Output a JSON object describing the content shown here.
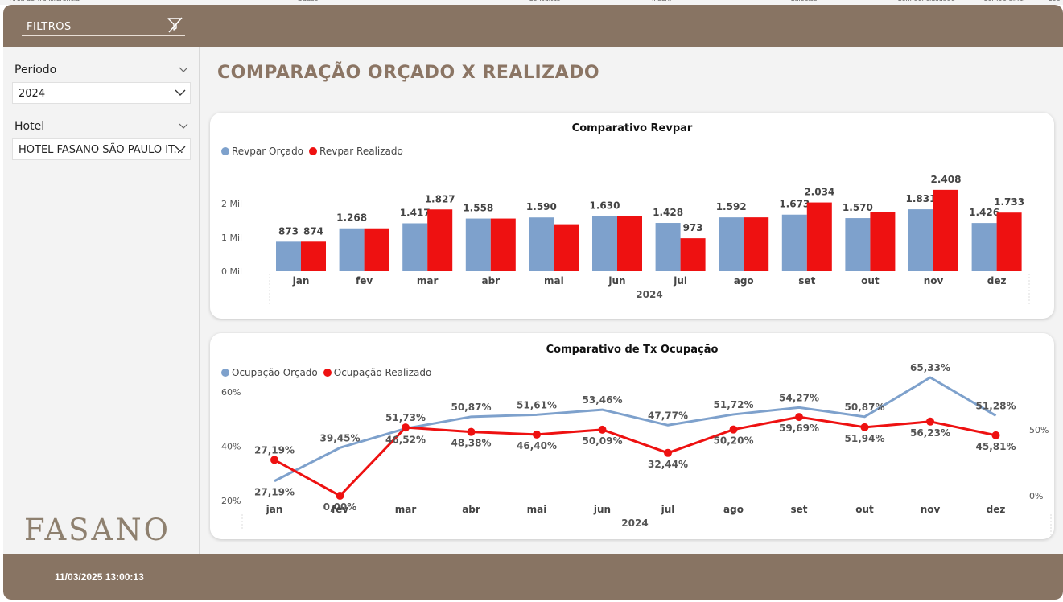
{
  "ribbon": [
    "Área de Transferência",
    "Dados",
    "Consultas",
    "Inserir",
    "Cálculos",
    "Confidencialidade",
    "Compartilhar",
    "Cop"
  ],
  "header": {
    "filters_label": "FILTROS",
    "icon": "filter-clear-icon"
  },
  "filters": [
    {
      "title": "Período",
      "value": "2024"
    },
    {
      "title": "Hotel",
      "value": "HOTEL FASANO SÃO PAULO IT..."
    }
  ],
  "logo": "FASANO",
  "page_title": "COMPARAÇÃO ORÇADO X REALIZADO",
  "footer": {
    "timestamp": "11/03/2025 13:00:13"
  },
  "colors": {
    "brand": "#887463",
    "budget": "#7ea1cc",
    "actual": "#ee1111",
    "title": "#8b7564"
  },
  "chart_data": [
    {
      "type": "bar",
      "title": "Comparativo Revpar",
      "xlabel": "2024",
      "categories": [
        "jan",
        "fev",
        "mar",
        "abr",
        "mai",
        "jun",
        "jul",
        "ago",
        "set",
        "out",
        "nov",
        "dez"
      ],
      "yticks": [
        "0 Mil",
        "1 Mil",
        "2 Mil"
      ],
      "ylim": [
        0,
        2500
      ],
      "legend_position": "top-left",
      "series": [
        {
          "name": "Revpar Orçado",
          "values": [
            873,
            1268,
            1417,
            1558,
            1590,
            1630,
            1428,
            1592,
            1673,
            1570,
            1831,
            1426
          ],
          "labels": [
            "873",
            "1.268",
            "1.417",
            "1.558",
            "1.590",
            "1.630",
            "1.428",
            "1.592",
            "1.673",
            "1.570",
            "1.831",
            "1.426"
          ]
        },
        {
          "name": "Revpar Realizado",
          "values": [
            874,
            1268,
            1827,
            1558,
            1390,
            1630,
            973,
            1592,
            2034,
            1760,
            2408,
            1733
          ],
          "labels": [
            "874",
            "",
            "1.827",
            "",
            "",
            "",
            "973",
            "",
            "2.034",
            "",
            "2.408",
            "1.733"
          ]
        }
      ]
    },
    {
      "type": "line",
      "title": "Comparativo de Tx Ocupação",
      "xlabel": "2024",
      "categories": [
        "jan",
        "fev",
        "mar",
        "abr",
        "mai",
        "jun",
        "jul",
        "ago",
        "set",
        "out",
        "nov",
        "dez"
      ],
      "y_left_ticks": [
        "20%",
        "40%",
        "60%"
      ],
      "y_left_range": [
        0.2,
        0.6
      ],
      "y_right_ticks": [
        "0%",
        "50%"
      ],
      "y_right_range": [
        0,
        0.7
      ],
      "legend_position": "top-left",
      "series": [
        {
          "name": "Ocupação Orçado",
          "axis": "left",
          "values": [
            0.2719,
            0.3945,
            0.4652,
            0.5087,
            0.5161,
            0.5346,
            0.4777,
            0.5172,
            0.5427,
            0.5087,
            0.6533,
            0.5128
          ],
          "labels": [
            "27,19%",
            "39,45%",
            "46,52%",
            "50,87%",
            "51,61%",
            "53,46%",
            "47,77%",
            "51,72%",
            "54,27%",
            "50,87%",
            "65,33%",
            "51,28%"
          ]
        },
        {
          "name": "Ocupação Realizado",
          "axis": "right",
          "values": [
            0.2719,
            0.0,
            0.5173,
            0.4838,
            0.464,
            0.5009,
            0.3244,
            0.502,
            0.5969,
            0.5194,
            0.5623,
            0.4581
          ],
          "labels": [
            "27,19%",
            "0,00%",
            "51,73%",
            "48,38%",
            "46,40%",
            "50,09%",
            "32,44%",
            "50,20%",
            "59,69%",
            "51,94%",
            "56,23%",
            "45,81%"
          ]
        }
      ]
    }
  ]
}
